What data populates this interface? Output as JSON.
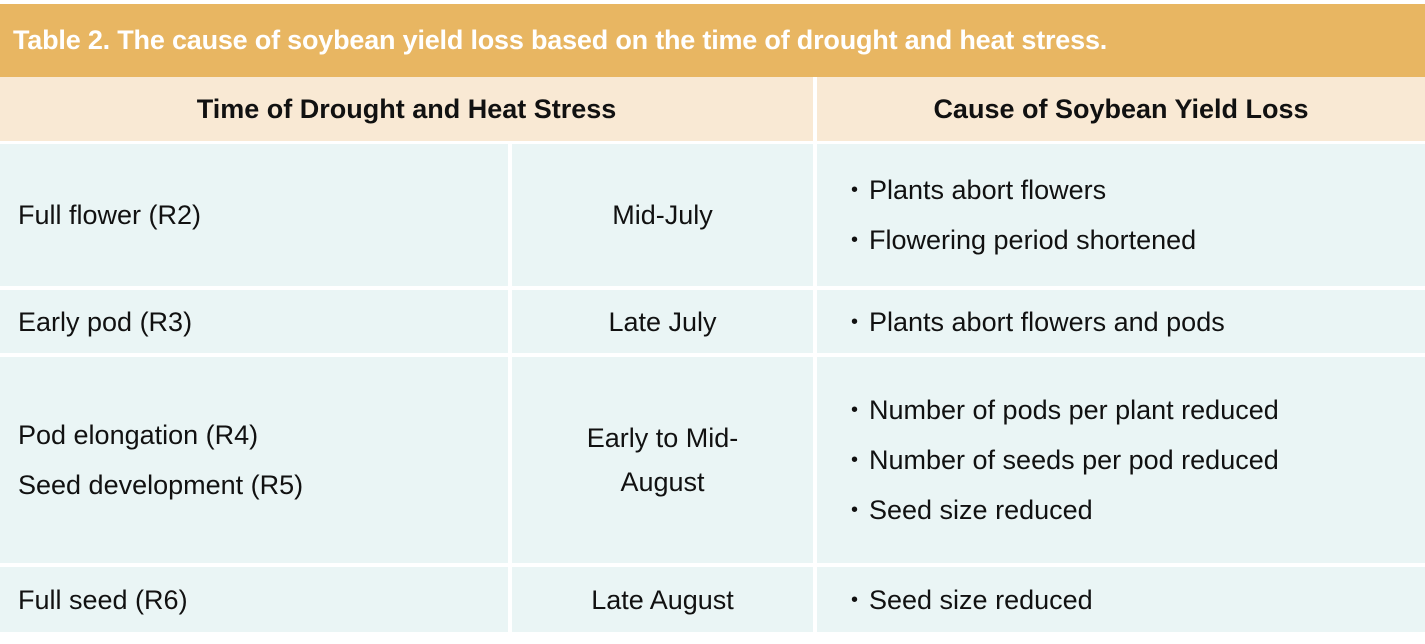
{
  "title": "Table 2. The cause of soybean yield loss based on the time of drought and heat stress.",
  "colors": {
    "title_band": "#E8B662",
    "header_bg": "#F9E9D4",
    "body_bg": "#EAF5F5"
  },
  "headers": [
    "Time of Drought and Heat Stress",
    "Cause of Soybean Yield Loss"
  ],
  "rows": [
    {
      "stages": [
        "Full flower (R2)"
      ],
      "time": "Mid-July",
      "causes": [
        "Plants abort flowers",
        "Flowering period shortened"
      ]
    },
    {
      "stages": [
        "Early pod (R3)"
      ],
      "time": "Late July",
      "causes": [
        "Plants abort flowers and pods"
      ]
    },
    {
      "stages": [
        "Pod elongation (R4)",
        "Seed development (R5)"
      ],
      "time": "Early to Mid-August",
      "causes": [
        "Number of pods per plant reduced",
        "Number of seeds per pod reduced",
        "Seed size reduced"
      ]
    },
    {
      "stages": [
        "Full seed (R6)"
      ],
      "time": "Late August",
      "causes": [
        "Seed size reduced"
      ]
    }
  ]
}
